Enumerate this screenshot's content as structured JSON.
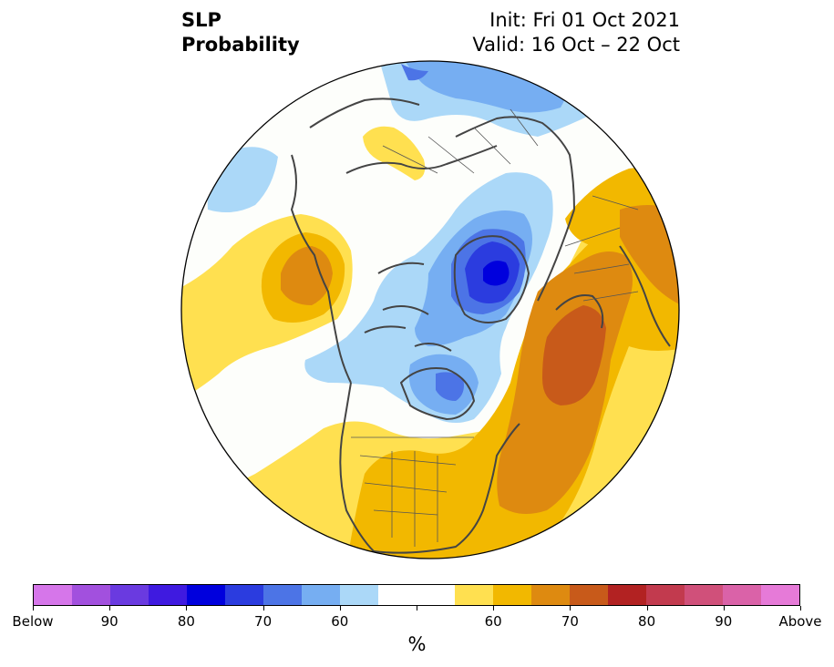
{
  "header": {
    "variable": "SLP",
    "product": "Probability",
    "init": "Init: Fri 01 Oct 2021",
    "valid": "Valid: 16 Oct – 22 Oct"
  },
  "colorbar": {
    "colors": [
      "#d676ea",
      "#a250de",
      "#6a3ae0",
      "#3f1ae0",
      "#0000dd",
      "#2b3cdf",
      "#4c74e6",
      "#76aef2",
      "#abd8f8",
      "#ffffff",
      "#ffffff",
      "#ffe050",
      "#f2b800",
      "#de8a10",
      "#c85a1a",
      "#b22222",
      "#c23a4e",
      "#d0507a",
      "#da62a8",
      "#e67ad8"
    ],
    "labels": [
      "Below",
      "90",
      "80",
      "70",
      "60",
      "60",
      "70",
      "80",
      "90",
      "Above"
    ],
    "unit": "%"
  },
  "palette": {
    "blue_light": "#abd8f8",
    "blue_mid": "#76aef2",
    "blue_strong": "#4c74e6",
    "blue_dark": "#2b3cdf",
    "navy": "#0000dd",
    "yellow": "#ffe050",
    "gold": "#f2b800",
    "orange": "#de8a10",
    "burnt": "#c85a1a"
  }
}
